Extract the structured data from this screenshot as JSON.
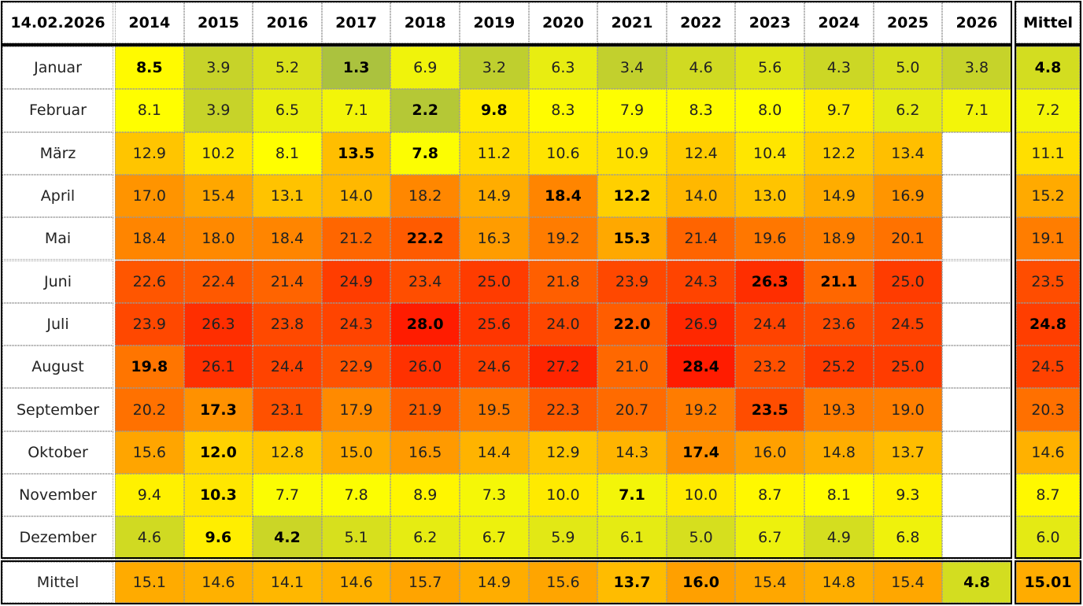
{
  "header": {
    "corner": "14.02.2026",
    "years": [
      "2014",
      "2015",
      "2016",
      "2017",
      "2018",
      "2019",
      "2020",
      "2021",
      "2022",
      "2023",
      "2024",
      "2025",
      "2026"
    ],
    "mean": "Mittel"
  },
  "rows": [
    {
      "label": "Januar",
      "cells": [
        "8.5",
        "3.9",
        "5.2",
        "1.3",
        "6.9",
        "3.2",
        "6.3",
        "3.4",
        "4.6",
        "5.6",
        "4.3",
        "5.0",
        "3.8"
      ],
      "mean": "4.8",
      "bold": [
        0,
        3
      ],
      "mean_bold": true
    },
    {
      "label": "Februar",
      "cells": [
        "8.1",
        "3.9",
        "6.5",
        "7.1",
        "2.2",
        "9.8",
        "8.3",
        "7.9",
        "8.3",
        "8.0",
        "9.7",
        "6.2",
        "7.1"
      ],
      "mean": "7.2",
      "bold": [
        4,
        5
      ],
      "mean_bold": false
    },
    {
      "label": "März",
      "cells": [
        "12.9",
        "10.2",
        "8.1",
        "13.5",
        "7.8",
        "11.2",
        "10.6",
        "10.9",
        "12.4",
        "10.4",
        "12.2",
        "13.4",
        null
      ],
      "mean": "11.1",
      "bold": [
        3,
        4
      ],
      "mean_bold": false
    },
    {
      "label": "April",
      "cells": [
        "17.0",
        "15.4",
        "13.1",
        "14.0",
        "18.2",
        "14.9",
        "18.4",
        "12.2",
        "14.0",
        "13.0",
        "14.9",
        "16.9",
        null
      ],
      "mean": "15.2",
      "bold": [
        6,
        7
      ],
      "mean_bold": false
    },
    {
      "label": "Mai",
      "cells": [
        "18.4",
        "18.0",
        "18.4",
        "21.2",
        "22.2",
        "16.3",
        "19.2",
        "15.3",
        "21.4",
        "19.6",
        "18.9",
        "20.1",
        null
      ],
      "mean": "19.1",
      "bold": [
        4,
        7
      ],
      "mean_bold": false
    },
    {
      "label": "Juni",
      "cells": [
        "22.6",
        "22.4",
        "21.4",
        "24.9",
        "23.4",
        "25.0",
        "21.8",
        "23.9",
        "24.3",
        "26.3",
        "21.1",
        "25.0",
        null
      ],
      "mean": "23.5",
      "bold": [
        9,
        10
      ],
      "mean_bold": false
    },
    {
      "label": "Juli",
      "cells": [
        "23.9",
        "26.3",
        "23.8",
        "24.3",
        "28.0",
        "25.6",
        "24.0",
        "22.0",
        "26.9",
        "24.4",
        "23.6",
        "24.5",
        null
      ],
      "mean": "24.8",
      "bold": [
        4,
        7
      ],
      "mean_bold": true
    },
    {
      "label": "August",
      "cells": [
        "19.8",
        "26.1",
        "24.4",
        "22.9",
        "26.0",
        "24.6",
        "27.2",
        "21.0",
        "28.4",
        "23.2",
        "25.2",
        "25.0",
        null
      ],
      "mean": "24.5",
      "bold": [
        0,
        8
      ],
      "mean_bold": false
    },
    {
      "label": "September",
      "cells": [
        "20.2",
        "17.3",
        "23.1",
        "17.9",
        "21.9",
        "19.5",
        "22.3",
        "20.7",
        "19.2",
        "23.5",
        "19.3",
        "19.0",
        null
      ],
      "mean": "20.3",
      "bold": [
        1,
        9
      ],
      "mean_bold": false
    },
    {
      "label": "Oktober",
      "cells": [
        "15.6",
        "12.0",
        "12.8",
        "15.0",
        "16.5",
        "14.4",
        "12.9",
        "14.3",
        "17.4",
        "16.0",
        "14.8",
        "13.7",
        null
      ],
      "mean": "14.6",
      "bold": [
        1,
        8
      ],
      "mean_bold": false
    },
    {
      "label": "November",
      "cells": [
        "9.4",
        "10.3",
        "7.7",
        "7.8",
        "8.9",
        "7.3",
        "10.0",
        "7.1",
        "10.0",
        "8.7",
        "8.1",
        "9.3",
        null
      ],
      "mean": "8.7",
      "bold": [
        1,
        7
      ],
      "mean_bold": false
    },
    {
      "label": "Dezember",
      "cells": [
        "4.6",
        "9.6",
        "4.2",
        "5.1",
        "6.2",
        "6.7",
        "5.9",
        "6.1",
        "5.0",
        "6.7",
        "4.9",
        "6.8",
        null
      ],
      "mean": "6.0",
      "bold": [
        1,
        2
      ],
      "mean_bold": false
    }
  ],
  "footer": {
    "label": "Mittel",
    "cells": [
      "15.1",
      "14.6",
      "14.1",
      "14.6",
      "15.7",
      "14.9",
      "15.6",
      "13.7",
      "16.0",
      "15.4",
      "14.8",
      "15.4",
      "4.8"
    ],
    "mean": "15.01",
    "bold": [
      7,
      8,
      12
    ],
    "mean_bold": true
  }
}
